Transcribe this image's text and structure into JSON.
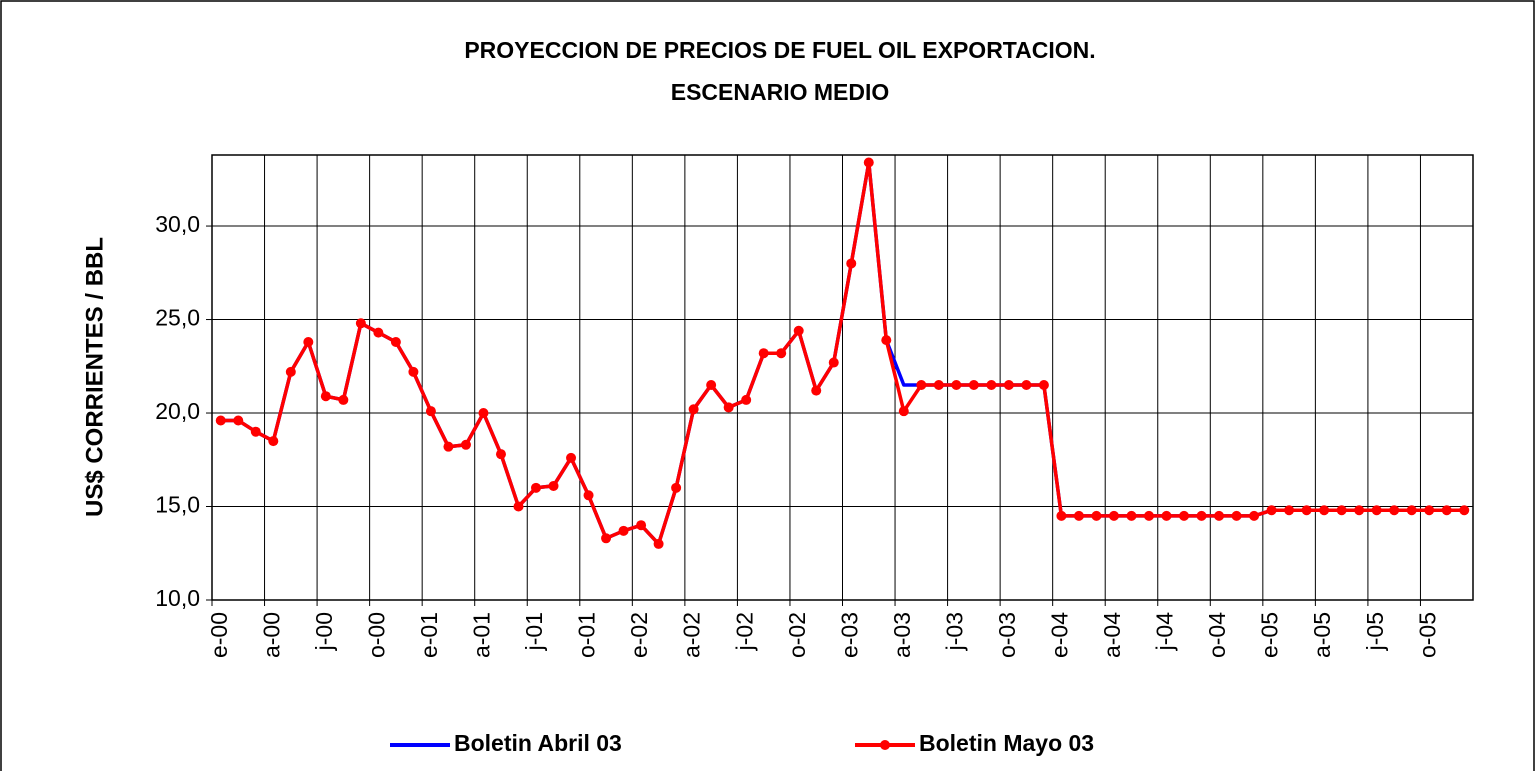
{
  "chart_data": {
    "type": "line",
    "title": "PROYECCION DE PRECIOS DE FUEL OIL EXPORTACION.",
    "subtitle": "ESCENARIO MEDIO",
    "y_label": "US$ CORRIENTES / BBL",
    "categories": [
      "e-00",
      null,
      null,
      "a-00",
      null,
      null,
      "j-00",
      null,
      null,
      "o-00",
      null,
      null,
      "e-01",
      null,
      null,
      "a-01",
      null,
      null,
      "j-01",
      null,
      null,
      "o-01",
      null,
      null,
      "e-02",
      null,
      null,
      "a-02",
      null,
      null,
      "j-02",
      null,
      null,
      "o-02",
      null,
      null,
      "e-03",
      null,
      null,
      "a-03",
      null,
      null,
      "j-03",
      null,
      null,
      "o-03",
      null,
      null,
      "e-04",
      null,
      null,
      "a-04",
      null,
      null,
      "j-04",
      null,
      null,
      "o-04",
      null,
      null,
      "e-05",
      null,
      null,
      "a-05",
      null,
      null,
      "j-05",
      null,
      null,
      "o-05",
      null,
      null
    ],
    "series": [
      {
        "name": "Boletin Abril 03",
        "color": "#0000ff",
        "markers": false,
        "values": [
          19.6,
          19.6,
          19.0,
          18.5,
          22.2,
          23.8,
          20.9,
          20.7,
          24.8,
          24.3,
          23.8,
          22.2,
          20.1,
          18.2,
          18.3,
          20.0,
          17.8,
          15.0,
          16.0,
          16.1,
          17.6,
          15.6,
          13.3,
          13.7,
          14.0,
          13.0,
          16.0,
          20.2,
          21.5,
          20.3,
          20.7,
          23.2,
          23.2,
          24.4,
          21.2,
          22.7,
          28.0,
          33.4,
          23.9,
          21.5,
          21.5,
          21.5,
          21.5,
          21.5,
          21.5,
          21.5,
          21.5,
          21.5,
          14.5,
          14.5,
          14.5,
          14.5,
          14.5,
          14.5,
          14.5,
          14.5,
          14.5,
          14.5,
          14.5,
          14.5,
          14.8,
          14.8,
          14.8,
          14.8,
          14.8,
          14.8,
          14.8,
          14.8,
          14.8,
          14.8,
          14.8,
          14.8
        ]
      },
      {
        "name": "Boletin Mayo 03",
        "color": "#ff0000",
        "markers": true,
        "values": [
          19.6,
          19.6,
          19.0,
          18.5,
          22.2,
          23.8,
          20.9,
          20.7,
          24.8,
          24.3,
          23.8,
          22.2,
          20.1,
          18.2,
          18.3,
          20.0,
          17.8,
          15.0,
          16.0,
          16.1,
          17.6,
          15.6,
          13.3,
          13.7,
          14.0,
          13.0,
          16.0,
          20.2,
          21.5,
          20.3,
          20.7,
          23.2,
          23.2,
          24.4,
          21.2,
          22.7,
          28.0,
          33.4,
          23.9,
          20.1,
          21.5,
          21.5,
          21.5,
          21.5,
          21.5,
          21.5,
          21.5,
          21.5,
          14.5,
          14.5,
          14.5,
          14.5,
          14.5,
          14.5,
          14.5,
          14.5,
          14.5,
          14.5,
          14.5,
          14.5,
          14.8,
          14.8,
          14.8,
          14.8,
          14.8,
          14.8,
          14.8,
          14.8,
          14.8,
          14.8,
          14.8,
          14.8
        ]
      }
    ],
    "ylim": [
      10,
      33.8
    ],
    "yticks": [
      {
        "value": 10,
        "label": "10,0"
      },
      {
        "value": 15,
        "label": "15,0"
      },
      {
        "value": 20,
        "label": "20,0"
      },
      {
        "value": 25,
        "label": "25,0"
      },
      {
        "value": 30,
        "label": "30,0"
      }
    ],
    "grid": true
  }
}
